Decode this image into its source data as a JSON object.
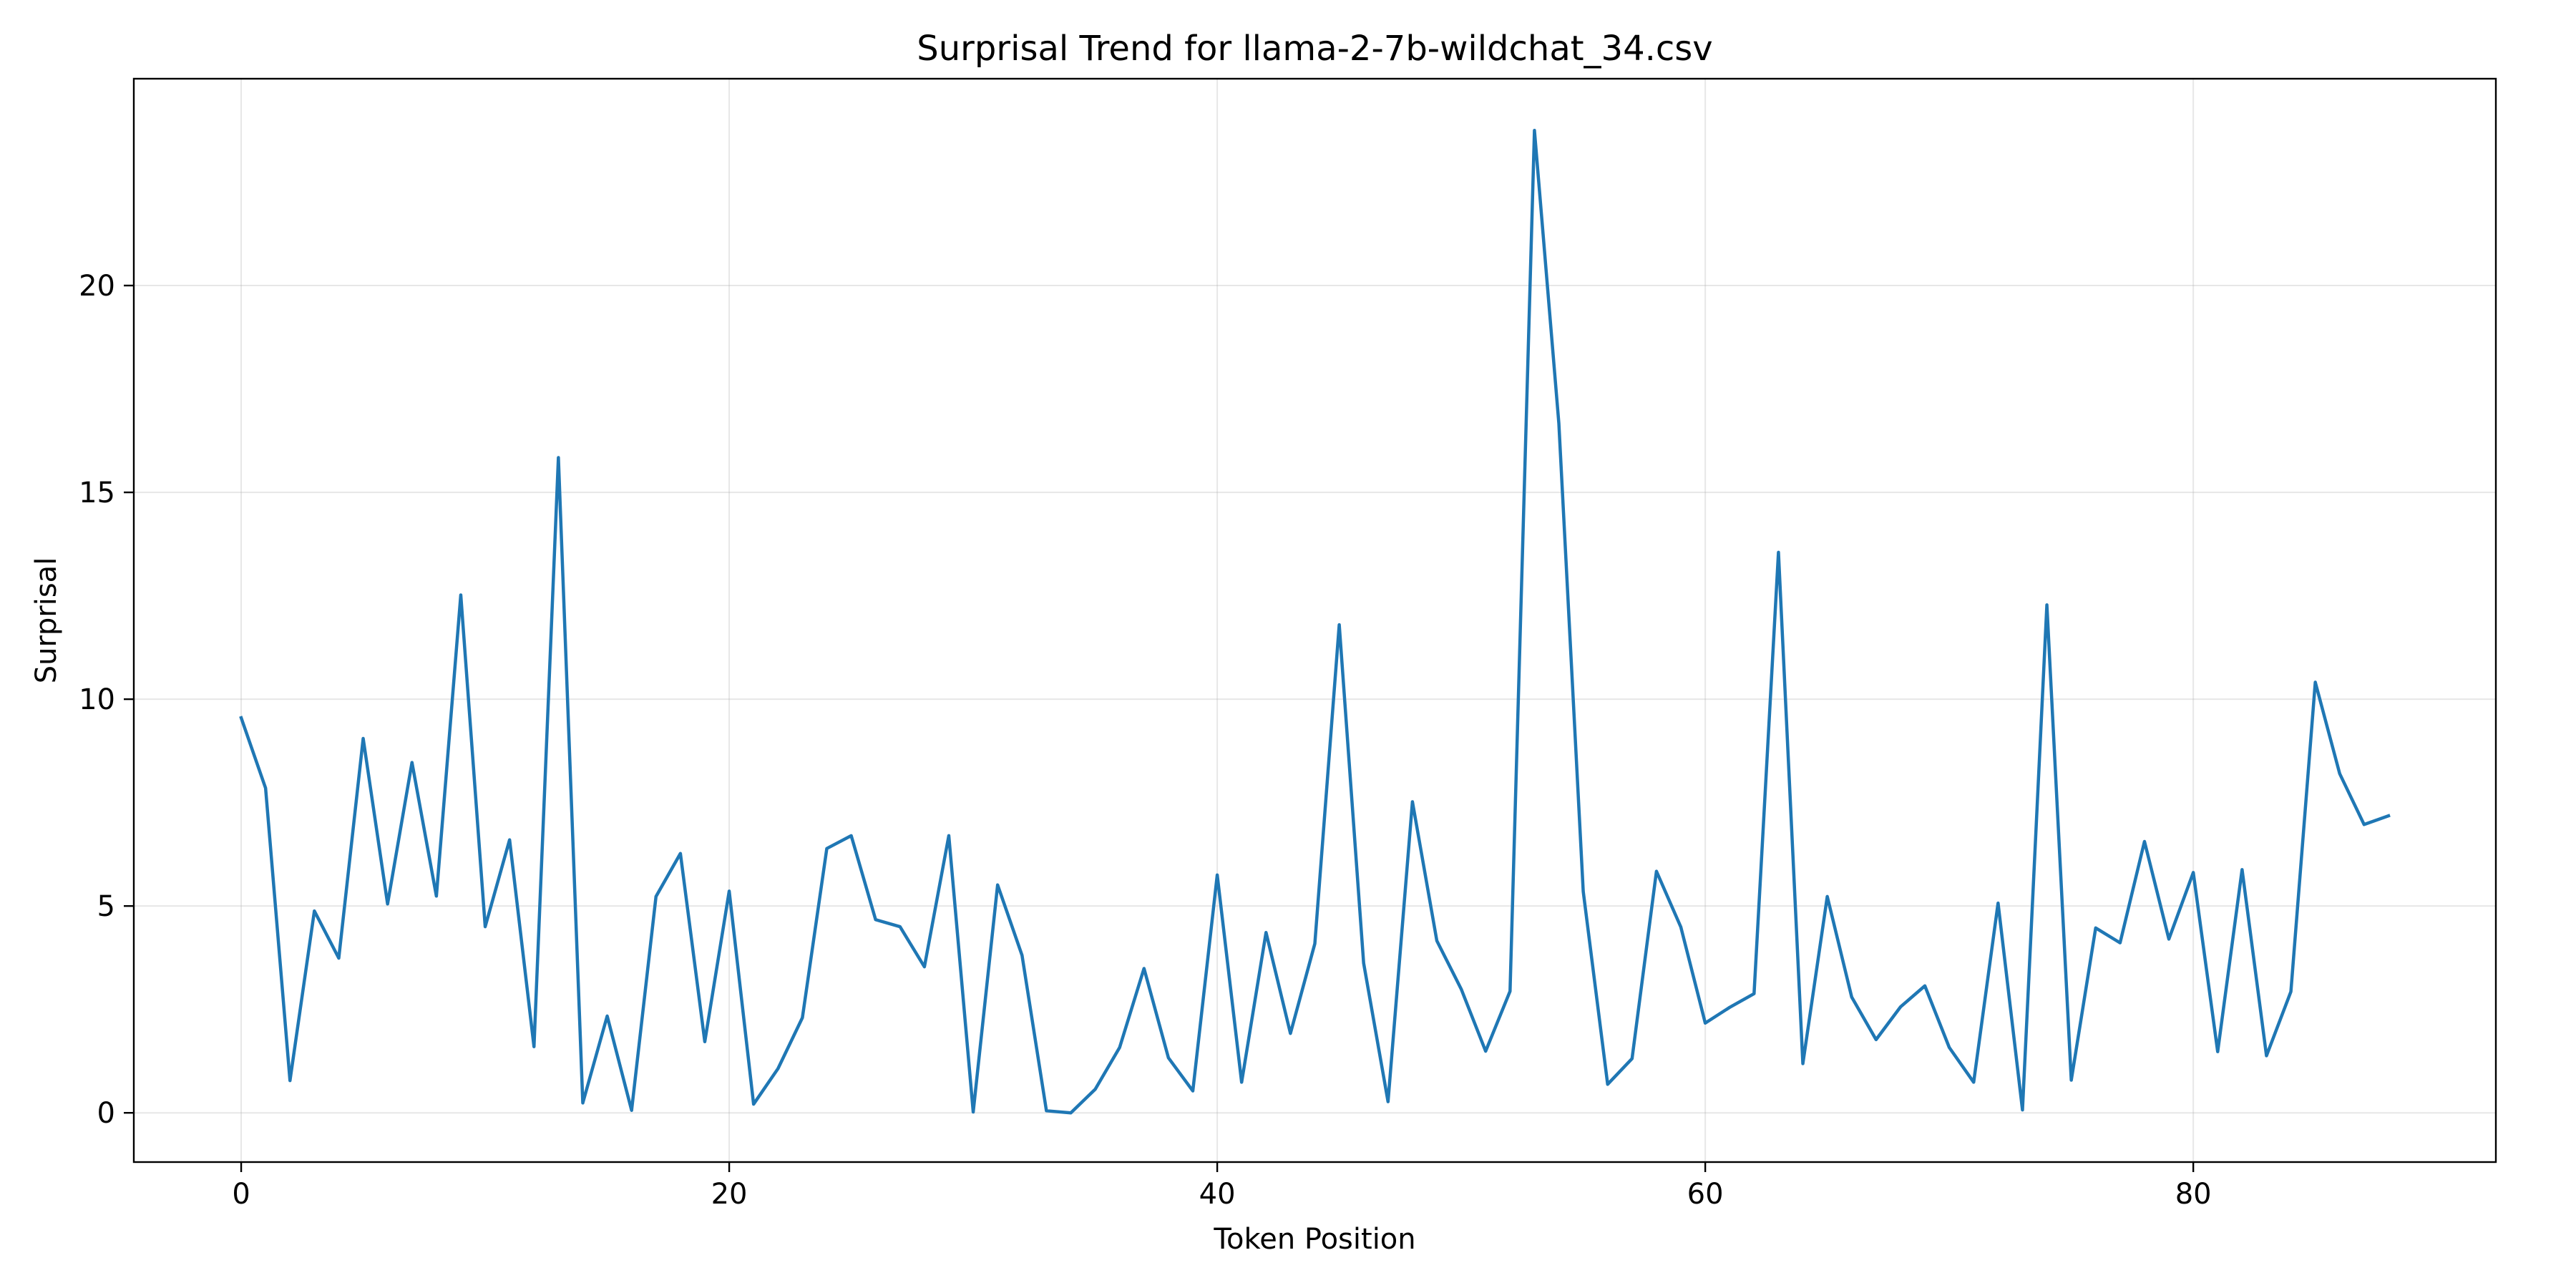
{
  "chart_data": {
    "type": "line",
    "title": "Surprisal Trend for llama-2-7b-wildchat_34.csv",
    "xlabel": "Token Position",
    "ylabel": "Surprisal",
    "xlim": [
      -4.4,
      92.4
    ],
    "ylim": [
      -1.19,
      25.0
    ],
    "xticks": [
      0,
      20,
      40,
      60,
      80
    ],
    "yticks": [
      0,
      5,
      10,
      15,
      20
    ],
    "grid": true,
    "line_color": "#1f77b4",
    "series": [
      {
        "x": [
          0,
          1,
          2,
          3,
          4,
          5,
          6,
          7,
          8,
          9,
          10,
          11,
          12,
          13,
          14,
          15,
          16,
          17,
          18,
          19,
          20,
          21,
          22,
          23,
          24,
          25,
          26,
          27,
          28,
          29,
          30,
          31,
          32,
          33,
          34,
          35,
          36,
          37,
          38,
          39,
          40,
          41,
          42,
          43,
          44,
          45,
          46,
          47,
          48,
          49,
          50,
          51,
          52,
          53,
          54,
          55,
          56,
          57,
          58,
          59,
          60,
          61,
          62,
          63,
          64,
          65,
          66,
          67,
          68,
          69,
          70,
          71,
          72,
          73,
          74,
          75,
          76,
          77,
          78,
          79,
          80,
          81,
          82,
          83,
          84,
          85,
          86,
          87,
          88
        ],
        "values": [
          9.55,
          7.85,
          0.78,
          4.88,
          3.74,
          9.05,
          5.05,
          8.47,
          5.24,
          12.52,
          4.5,
          6.6,
          1.6,
          15.84,
          0.24,
          2.34,
          0.06,
          5.23,
          6.27,
          1.72,
          5.36,
          0.21,
          1.07,
          2.3,
          6.39,
          6.7,
          4.67,
          4.5,
          3.53,
          6.7,
          0.02,
          5.51,
          3.81,
          0.05,
          0.0,
          0.57,
          1.58,
          3.49,
          1.33,
          0.53,
          5.75,
          0.74,
          4.36,
          1.92,
          4.09,
          11.8,
          3.62,
          0.27,
          7.52,
          4.16,
          2.99,
          1.49,
          2.94,
          23.75,
          16.67,
          5.35,
          0.69,
          1.31,
          5.84,
          4.49,
          2.17,
          2.55,
          2.88,
          13.55,
          1.19,
          5.23,
          2.8,
          1.77,
          2.56,
          3.07,
          1.58,
          0.74,
          5.07,
          0.07,
          12.28,
          0.79,
          4.47,
          4.11,
          6.56,
          4.2,
          5.81,
          1.48,
          5.88,
          1.38,
          2.93,
          10.41,
          8.2,
          6.97,
          7.18
        ]
      }
    ]
  }
}
